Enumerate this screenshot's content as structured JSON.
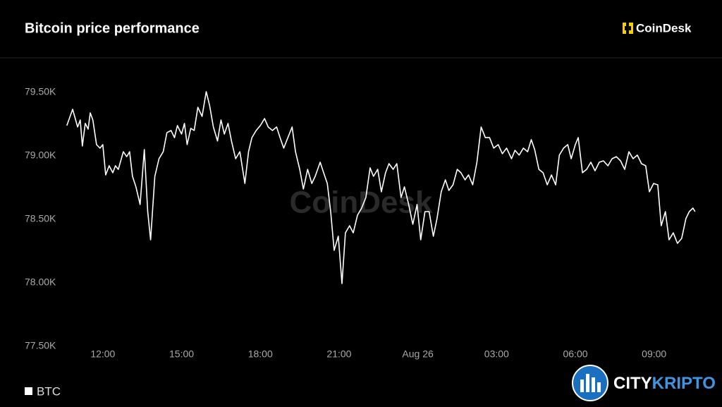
{
  "chart_data": {
    "type": "line",
    "title": "Bitcoin price performance",
    "brand": "CoinDesk",
    "watermark": "CoinDesk",
    "credit": [
      "CITY",
      "KRIPTO"
    ],
    "x": [
      10.63,
      10.85,
      11.04,
      11.14,
      11.22,
      11.33,
      11.44,
      11.52,
      11.62,
      11.76,
      11.89,
      12.0,
      12.11,
      12.24,
      12.38,
      12.48,
      12.59,
      12.78,
      12.91,
      13.02,
      13.13,
      13.26,
      13.42,
      13.58,
      13.71,
      13.82,
      13.98,
      14.14,
      14.3,
      14.44,
      14.6,
      14.73,
      14.84,
      15.0,
      15.11,
      15.21,
      15.35,
      15.48,
      15.62,
      15.78,
      15.94,
      16.07,
      16.21,
      16.37,
      16.5,
      16.63,
      16.77,
      16.9,
      17.06,
      17.22,
      17.41,
      17.55,
      17.68,
      17.84,
      18.0,
      18.16,
      18.3,
      18.46,
      18.62,
      18.75,
      18.89,
      19.05,
      19.21,
      19.34,
      19.5,
      19.64,
      19.8,
      19.96,
      20.09,
      20.28,
      20.41,
      20.55,
      20.68,
      20.81,
      20.97,
      21.11,
      21.24,
      21.4,
      21.54,
      21.7,
      21.86,
      22.02,
      22.18,
      22.31,
      22.47,
      22.61,
      22.77,
      22.9,
      23.06,
      23.2,
      23.36,
      23.49,
      23.65,
      23.81,
      23.97,
      24.11,
      24.27,
      24.43,
      24.59,
      24.73,
      24.89,
      25.05,
      25.18,
      25.34,
      25.5,
      25.64,
      25.8,
      25.93,
      26.09,
      26.25,
      26.41,
      26.57,
      26.73,
      26.89,
      27.06,
      27.22,
      27.38,
      27.57,
      27.7,
      27.86,
      28.02,
      28.18,
      28.32,
      28.45,
      28.61,
      28.77,
      28.93,
      29.09,
      29.25,
      29.39,
      29.55,
      29.71,
      29.84,
      30.0,
      30.11,
      30.27,
      30.43,
      30.59,
      30.75,
      30.91,
      31.07,
      31.24,
      31.4,
      31.56,
      31.72,
      31.88,
      32.04,
      32.2,
      32.36,
      32.52,
      32.68,
      32.82,
      32.98,
      33.14,
      33.27,
      33.43,
      33.57,
      33.73,
      33.89,
      34.05,
      34.21,
      34.34,
      34.48,
      34.56
    ],
    "series": [
      {
        "name": "BTC",
        "color": "#ffffff",
        "values": [
          79239,
          79367,
          79228,
          79283,
          79078,
          79256,
          79211,
          79339,
          79283,
          79089,
          79061,
          79089,
          78850,
          78922,
          78867,
          78922,
          78894,
          79033,
          78994,
          79033,
          78839,
          78756,
          78617,
          79050,
          78561,
          78339,
          78839,
          78978,
          79033,
          79183,
          79200,
          79144,
          79239,
          79172,
          79256,
          79089,
          79217,
          79200,
          79383,
          79311,
          79506,
          79394,
          79228,
          79117,
          79283,
          79172,
          79256,
          79117,
          78978,
          79033,
          78783,
          79033,
          79144,
          79200,
          79239,
          79294,
          79228,
          79200,
          79228,
          79144,
          79061,
          79144,
          79228,
          79033,
          78894,
          78739,
          78894,
          78783,
          78839,
          78950,
          78867,
          78783,
          78561,
          78256,
          78367,
          77994,
          78394,
          78450,
          78394,
          78533,
          78589,
          78672,
          78906,
          78839,
          78894,
          78717,
          78867,
          78939,
          78894,
          78939,
          78672,
          78756,
          78617,
          78461,
          78617,
          78339,
          78561,
          78561,
          78367,
          78506,
          78717,
          78811,
          78728,
          78772,
          78894,
          78867,
          78811,
          78850,
          78772,
          78950,
          79228,
          79144,
          79144,
          79061,
          79089,
          79017,
          79061,
          78978,
          79044,
          79006,
          79061,
          79033,
          79128,
          79050,
          78894,
          78867,
          78772,
          78850,
          78772,
          79006,
          79061,
          79089,
          78978,
          79089,
          79144,
          78867,
          78894,
          78950,
          78883,
          78950,
          78961,
          78922,
          78978,
          78994,
          78961,
          78894,
          79033,
          78978,
          79006,
          78939,
          78922,
          78717,
          78783,
          78772,
          78450,
          78561,
          78339,
          78394,
          78311,
          78350,
          78506,
          78561,
          78589,
          78561
        ]
      }
    ],
    "xlim": [
      10.5,
      34.7
    ],
    "xticks": [
      {
        "value": 12,
        "label": "12:00"
      },
      {
        "value": 15,
        "label": "15:00"
      },
      {
        "value": 18,
        "label": "18:00"
      },
      {
        "value": 21,
        "label": "21:00"
      },
      {
        "value": 24,
        "label": "Aug 26"
      },
      {
        "value": 27,
        "label": "03:00"
      },
      {
        "value": 30,
        "label": "06:00"
      },
      {
        "value": 33,
        "label": "09:00"
      }
    ],
    "ylim": [
      77500,
      79700
    ],
    "yticks": [
      {
        "value": 77500,
        "label": "77.50K"
      },
      {
        "value": 78000,
        "label": "78.00K"
      },
      {
        "value": 78500,
        "label": "78.50K"
      },
      {
        "value": 79000,
        "label": "79.00K"
      },
      {
        "value": 79500,
        "label": "79.50K"
      }
    ],
    "grid": false
  }
}
